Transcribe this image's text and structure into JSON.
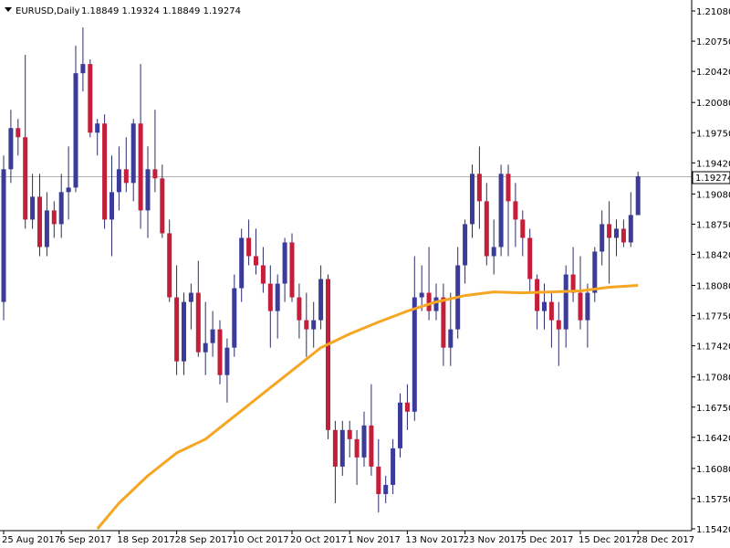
{
  "header": {
    "symbol": "EURUSD,Daily",
    "ohlc": "1.18849 1.19324 1.18849 1.19274"
  },
  "colors": {
    "background": "#ffffff",
    "bull_body": "#3b3b9a",
    "bear_body": "#c41e3a",
    "wick": "#2b2b6b",
    "ma_line": "#f5a623",
    "price_line": "#b0b0b0",
    "axis": "#000000"
  },
  "price_tag": "1.19274",
  "chart_data": {
    "type": "candlestick",
    "ylim": [
      1.154,
      1.212
    ],
    "y_ticks": [
      "1.21080",
      "1.20750",
      "1.20420",
      "1.20080",
      "1.19750",
      "1.19420",
      "1.19080",
      "1.18750",
      "1.18420",
      "1.18080",
      "1.17750",
      "1.17420",
      "1.17080",
      "1.16750",
      "1.16420",
      "1.16080",
      "1.15750",
      "1.15420"
    ],
    "x_ticks": [
      {
        "label": "25 Aug 2017",
        "index": 0
      },
      {
        "label": "6 Sep 2017",
        "index": 8
      },
      {
        "label": "18 Sep 2017",
        "index": 16
      },
      {
        "label": "28 Sep 2017",
        "index": 24
      },
      {
        "label": "10 Oct 2017",
        "index": 32
      },
      {
        "label": "20 Oct 2017",
        "index": 40
      },
      {
        "label": "1 Nov 2017",
        "index": 48
      },
      {
        "label": "13 Nov 2017",
        "index": 56
      },
      {
        "label": "23 Nov 2017",
        "index": 64
      },
      {
        "label": "5 Dec 2017",
        "index": 72
      },
      {
        "label": "15 Dec 2017",
        "index": 80
      },
      {
        "label": "28 Dec 2017",
        "index": 88
      }
    ],
    "current_price": 1.19274,
    "candles": [
      {
        "o": 1.179,
        "h": 1.195,
        "l": 1.177,
        "c": 1.1935
      },
      {
        "o": 1.1935,
        "h": 1.2,
        "l": 1.192,
        "c": 1.198
      },
      {
        "o": 1.198,
        "h": 1.199,
        "l": 1.195,
        "c": 1.197
      },
      {
        "o": 1.197,
        "h": 1.206,
        "l": 1.187,
        "c": 1.188
      },
      {
        "o": 1.188,
        "h": 1.193,
        "l": 1.187,
        "c": 1.1905
      },
      {
        "o": 1.1905,
        "h": 1.193,
        "l": 1.184,
        "c": 1.185
      },
      {
        "o": 1.185,
        "h": 1.191,
        "l": 1.184,
        "c": 1.189
      },
      {
        "o": 1.189,
        "h": 1.19,
        "l": 1.186,
        "c": 1.1875
      },
      {
        "o": 1.1875,
        "h": 1.193,
        "l": 1.186,
        "c": 1.191
      },
      {
        "o": 1.191,
        "h": 1.196,
        "l": 1.188,
        "c": 1.1915
      },
      {
        "o": 1.1915,
        "h": 1.207,
        "l": 1.191,
        "c": 1.204
      },
      {
        "o": 1.204,
        "h": 1.209,
        "l": 1.202,
        "c": 1.205
      },
      {
        "o": 1.205,
        "h": 1.2055,
        "l": 1.197,
        "c": 1.1975
      },
      {
        "o": 1.1975,
        "h": 1.199,
        "l": 1.195,
        "c": 1.1985
      },
      {
        "o": 1.1985,
        "h": 1.1995,
        "l": 1.187,
        "c": 1.188
      },
      {
        "o": 1.188,
        "h": 1.195,
        "l": 1.184,
        "c": 1.191
      },
      {
        "o": 1.191,
        "h": 1.196,
        "l": 1.189,
        "c": 1.1935
      },
      {
        "o": 1.1935,
        "h": 1.197,
        "l": 1.191,
        "c": 1.192
      },
      {
        "o": 1.192,
        "h": 1.199,
        "l": 1.19,
        "c": 1.1985
      },
      {
        "o": 1.1985,
        "h": 1.205,
        "l": 1.187,
        "c": 1.189
      },
      {
        "o": 1.189,
        "h": 1.196,
        "l": 1.186,
        "c": 1.1935
      },
      {
        "o": 1.1935,
        "h": 1.2,
        "l": 1.191,
        "c": 1.1925
      },
      {
        "o": 1.1925,
        "h": 1.194,
        "l": 1.186,
        "c": 1.1865
      },
      {
        "o": 1.1865,
        "h": 1.188,
        "l": 1.179,
        "c": 1.1795
      },
      {
        "o": 1.1795,
        "h": 1.183,
        "l": 1.171,
        "c": 1.1725
      },
      {
        "o": 1.1725,
        "h": 1.18,
        "l": 1.171,
        "c": 1.179
      },
      {
        "o": 1.179,
        "h": 1.181,
        "l": 1.176,
        "c": 1.18
      },
      {
        "o": 1.18,
        "h": 1.1835,
        "l": 1.173,
        "c": 1.1735
      },
      {
        "o": 1.1735,
        "h": 1.179,
        "l": 1.171,
        "c": 1.1745
      },
      {
        "o": 1.1745,
        "h": 1.178,
        "l": 1.173,
        "c": 1.176
      },
      {
        "o": 1.176,
        "h": 1.177,
        "l": 1.17,
        "c": 1.171
      },
      {
        "o": 1.171,
        "h": 1.175,
        "l": 1.168,
        "c": 1.174
      },
      {
        "o": 1.174,
        "h": 1.182,
        "l": 1.173,
        "c": 1.1805
      },
      {
        "o": 1.1805,
        "h": 1.187,
        "l": 1.179,
        "c": 1.186
      },
      {
        "o": 1.186,
        "h": 1.188,
        "l": 1.183,
        "c": 1.184
      },
      {
        "o": 1.184,
        "h": 1.187,
        "l": 1.182,
        "c": 1.183
      },
      {
        "o": 1.183,
        "h": 1.185,
        "l": 1.18,
        "c": 1.181
      },
      {
        "o": 1.181,
        "h": 1.183,
        "l": 1.174,
        "c": 1.178
      },
      {
        "o": 1.178,
        "h": 1.182,
        "l": 1.175,
        "c": 1.181
      },
      {
        "o": 1.181,
        "h": 1.186,
        "l": 1.179,
        "c": 1.1855
      },
      {
        "o": 1.1855,
        "h": 1.1865,
        "l": 1.179,
        "c": 1.1795
      },
      {
        "o": 1.1795,
        "h": 1.181,
        "l": 1.175,
        "c": 1.177
      },
      {
        "o": 1.177,
        "h": 1.18,
        "l": 1.173,
        "c": 1.176
      },
      {
        "o": 1.176,
        "h": 1.179,
        "l": 1.174,
        "c": 1.177
      },
      {
        "o": 1.177,
        "h": 1.183,
        "l": 1.176,
        "c": 1.1815
      },
      {
        "o": 1.1815,
        "h": 1.182,
        "l": 1.164,
        "c": 1.165
      },
      {
        "o": 1.165,
        "h": 1.166,
        "l": 1.157,
        "c": 1.161
      },
      {
        "o": 1.161,
        "h": 1.166,
        "l": 1.16,
        "c": 1.165
      },
      {
        "o": 1.165,
        "h": 1.166,
        "l": 1.162,
        "c": 1.164
      },
      {
        "o": 1.164,
        "h": 1.165,
        "l": 1.159,
        "c": 1.162
      },
      {
        "o": 1.162,
        "h": 1.167,
        "l": 1.161,
        "c": 1.1655
      },
      {
        "o": 1.1655,
        "h": 1.17,
        "l": 1.16,
        "c": 1.161
      },
      {
        "o": 1.161,
        "h": 1.164,
        "l": 1.156,
        "c": 1.158
      },
      {
        "o": 1.158,
        "h": 1.16,
        "l": 1.157,
        "c": 1.159
      },
      {
        "o": 1.159,
        "h": 1.164,
        "l": 1.158,
        "c": 1.163
      },
      {
        "o": 1.163,
        "h": 1.169,
        "l": 1.162,
        "c": 1.168
      },
      {
        "o": 1.168,
        "h": 1.17,
        "l": 1.165,
        "c": 1.167
      },
      {
        "o": 1.167,
        "h": 1.184,
        "l": 1.166,
        "c": 1.1795
      },
      {
        "o": 1.1795,
        "h": 1.183,
        "l": 1.178,
        "c": 1.18
      },
      {
        "o": 1.18,
        "h": 1.185,
        "l": 1.177,
        "c": 1.178
      },
      {
        "o": 1.178,
        "h": 1.181,
        "l": 1.177,
        "c": 1.1795
      },
      {
        "o": 1.1795,
        "h": 1.181,
        "l": 1.172,
        "c": 1.174
      },
      {
        "o": 1.174,
        "h": 1.18,
        "l": 1.172,
        "c": 1.176
      },
      {
        "o": 1.176,
        "h": 1.185,
        "l": 1.175,
        "c": 1.183
      },
      {
        "o": 1.183,
        "h": 1.188,
        "l": 1.181,
        "c": 1.1875
      },
      {
        "o": 1.1875,
        "h": 1.194,
        "l": 1.186,
        "c": 1.193
      },
      {
        "o": 1.193,
        "h": 1.196,
        "l": 1.187,
        "c": 1.19
      },
      {
        "o": 1.19,
        "h": 1.192,
        "l": 1.183,
        "c": 1.184
      },
      {
        "o": 1.184,
        "h": 1.188,
        "l": 1.182,
        "c": 1.185
      },
      {
        "o": 1.185,
        "h": 1.194,
        "l": 1.184,
        "c": 1.193
      },
      {
        "o": 1.193,
        "h": 1.194,
        "l": 1.184,
        "c": 1.19
      },
      {
        "o": 1.19,
        "h": 1.192,
        "l": 1.185,
        "c": 1.188
      },
      {
        "o": 1.188,
        "h": 1.189,
        "l": 1.184,
        "c": 1.186
      },
      {
        "o": 1.186,
        "h": 1.187,
        "l": 1.18,
        "c": 1.1815
      },
      {
        "o": 1.1815,
        "h": 1.182,
        "l": 1.176,
        "c": 1.178
      },
      {
        "o": 1.178,
        "h": 1.181,
        "l": 1.176,
        "c": 1.179
      },
      {
        "o": 1.179,
        "h": 1.18,
        "l": 1.174,
        "c": 1.177
      },
      {
        "o": 1.177,
        "h": 1.179,
        "l": 1.172,
        "c": 1.176
      },
      {
        "o": 1.176,
        "h": 1.183,
        "l": 1.174,
        "c": 1.182
      },
      {
        "o": 1.182,
        "h": 1.185,
        "l": 1.179,
        "c": 1.18
      },
      {
        "o": 1.18,
        "h": 1.184,
        "l": 1.176,
        "c": 1.177
      },
      {
        "o": 1.177,
        "h": 1.181,
        "l": 1.174,
        "c": 1.18
      },
      {
        "o": 1.18,
        "h": 1.185,
        "l": 1.179,
        "c": 1.1845
      },
      {
        "o": 1.1845,
        "h": 1.189,
        "l": 1.183,
        "c": 1.1875
      },
      {
        "o": 1.1875,
        "h": 1.19,
        "l": 1.181,
        "c": 1.186
      },
      {
        "o": 1.186,
        "h": 1.188,
        "l": 1.184,
        "c": 1.187
      },
      {
        "o": 1.187,
        "h": 1.188,
        "l": 1.185,
        "c": 1.1855
      },
      {
        "o": 1.1855,
        "h": 1.191,
        "l": 1.185,
        "c": 1.1885
      },
      {
        "o": 1.18849,
        "h": 1.19324,
        "l": 1.18849,
        "c": 1.19274
      }
    ],
    "ma_line": [
      {
        "i": 13,
        "v": 1.1542
      },
      {
        "i": 16,
        "v": 1.157
      },
      {
        "i": 20,
        "v": 1.16
      },
      {
        "i": 24,
        "v": 1.1625
      },
      {
        "i": 28,
        "v": 1.164
      },
      {
        "i": 32,
        "v": 1.1665
      },
      {
        "i": 36,
        "v": 1.169
      },
      {
        "i": 40,
        "v": 1.1715
      },
      {
        "i": 44,
        "v": 1.174
      },
      {
        "i": 48,
        "v": 1.1755
      },
      {
        "i": 52,
        "v": 1.1768
      },
      {
        "i": 56,
        "v": 1.178
      },
      {
        "i": 60,
        "v": 1.179
      },
      {
        "i": 64,
        "v": 1.1797
      },
      {
        "i": 68,
        "v": 1.1801
      },
      {
        "i": 72,
        "v": 1.18
      },
      {
        "i": 76,
        "v": 1.1801
      },
      {
        "i": 80,
        "v": 1.1802
      },
      {
        "i": 84,
        "v": 1.1806
      },
      {
        "i": 88,
        "v": 1.1808
      }
    ]
  }
}
